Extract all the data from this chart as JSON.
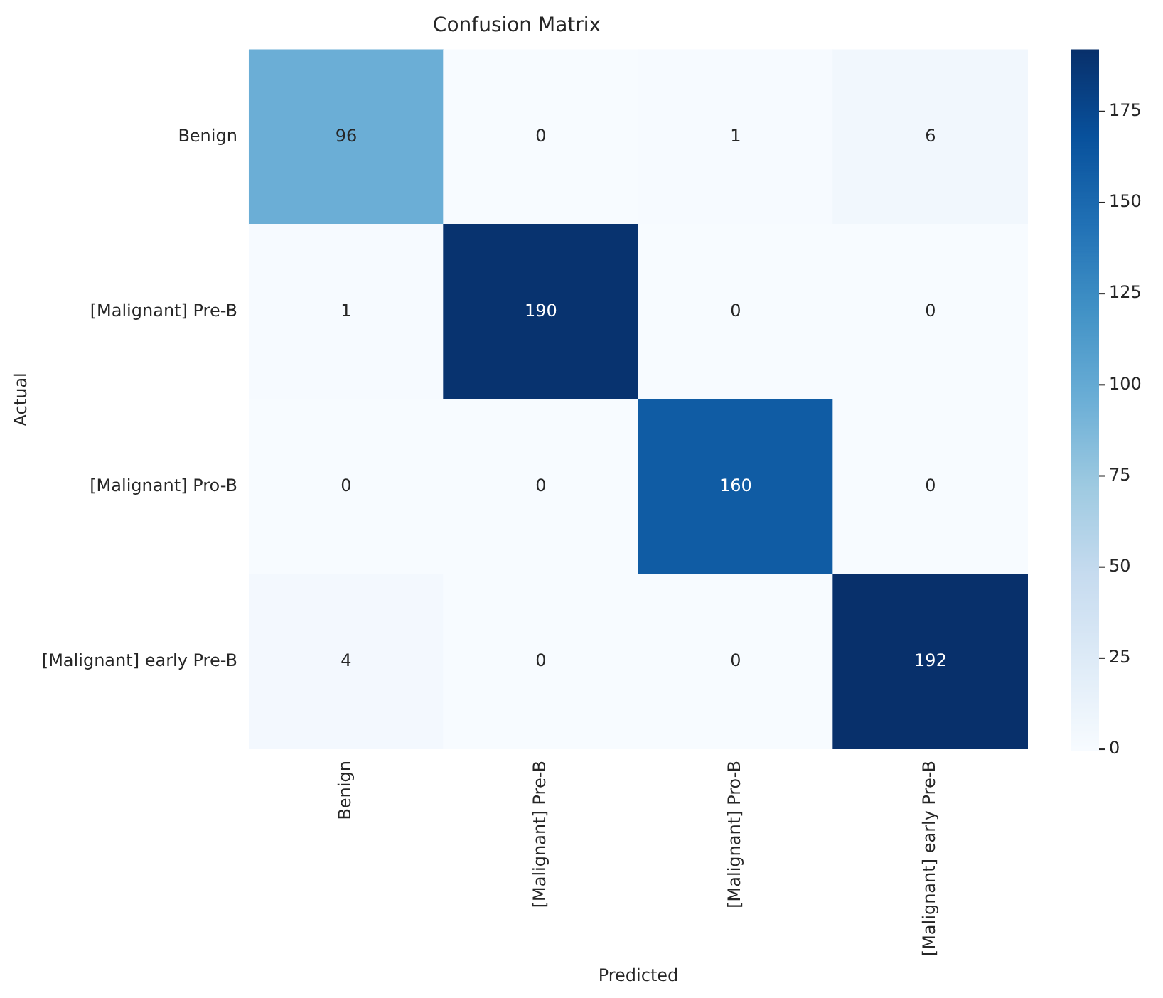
{
  "chart_data": {
    "type": "heatmap",
    "title": "Confusion Matrix",
    "xlabel": "Predicted",
    "ylabel": "Actual",
    "categories": [
      "Benign",
      "[Malignant] Pre-B",
      "[Malignant] Pro-B",
      "[Malignant] early Pre-B"
    ],
    "y_categories": [
      "Benign",
      "[Malignant] Pre-B",
      "[Malignant] Pro-B",
      "[Malignant] early Pre-B"
    ],
    "cells": [
      [
        96,
        0,
        1,
        6
      ],
      [
        1,
        190,
        0,
        0
      ],
      [
        0,
        0,
        160,
        0
      ],
      [
        4,
        0,
        0,
        192
      ]
    ],
    "data_labels": true,
    "clim": [
      0,
      192
    ],
    "cticks": [
      0,
      25,
      50,
      75,
      100,
      125,
      150,
      175
    ]
  }
}
